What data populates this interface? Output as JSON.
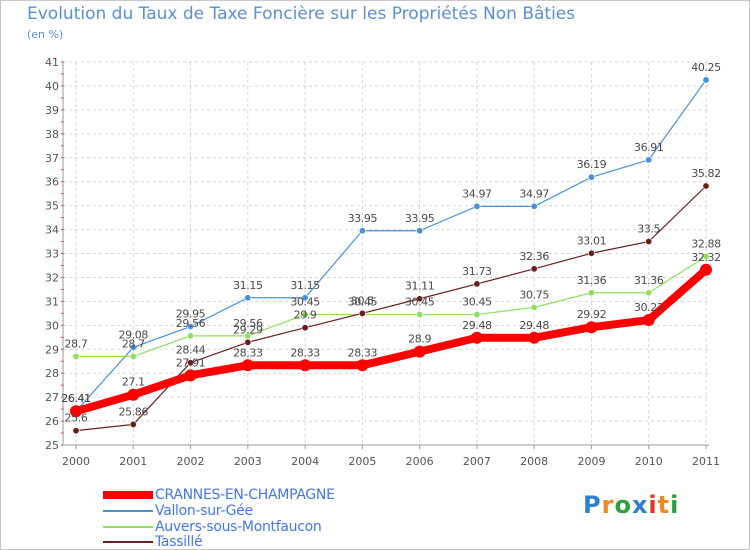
{
  "chart_data": {
    "type": "line",
    "title": "Evolution du Taux de Taxe Foncière sur les Propriétés Non Bâties",
    "ylabel": "(en %)",
    "xlabel": "",
    "categories": [
      "2000",
      "2001",
      "2002",
      "2003",
      "2004",
      "2005",
      "2006",
      "2007",
      "2008",
      "2009",
      "2010",
      "2011"
    ],
    "ylim": [
      25,
      41
    ],
    "yticks": [
      "25",
      "26",
      "27",
      "28",
      "29",
      "30",
      "31",
      "32",
      "33",
      "34",
      "35",
      "36",
      "37",
      "38",
      "39",
      "40",
      "41"
    ],
    "grid": true,
    "series": [
      {
        "name": "CRANNES-EN-CHAMPAGNE",
        "color": "#ff0000",
        "values": [
          26.41,
          27.1,
          27.91,
          28.33,
          28.33,
          28.33,
          28.9,
          29.48,
          29.48,
          29.92,
          30.22,
          32.32
        ],
        "labels": [
          "26.41",
          "27.1",
          "27.91",
          "28.33",
          "28.33",
          "28.33",
          "28.9",
          "29.48",
          "29.48",
          "29.92",
          "30.22",
          "32.32"
        ]
      },
      {
        "name": "Vallon-sur-Gée",
        "color": "#4a90d9",
        "values": [
          26.41,
          29.08,
          29.95,
          31.15,
          31.15,
          33.95,
          33.95,
          34.97,
          34.97,
          36.19,
          36.91,
          40.25
        ],
        "labels": [
          "26.41",
          "29.08",
          "29.95",
          "31.15",
          "31.15",
          "33.95",
          "33.95",
          "34.97",
          "34.97",
          "36.19",
          "36.91",
          "40.25"
        ]
      },
      {
        "name": "Auvers-sous-Montfaucon",
        "color": "#90e060",
        "values": [
          28.7,
          28.7,
          29.56,
          29.56,
          30.45,
          30.45,
          30.45,
          30.45,
          30.75,
          31.36,
          31.36,
          32.88
        ],
        "labels": [
          "28.7",
          "28.7",
          "29.56",
          "29.56",
          "30.45",
          "30.45",
          "30.45",
          "30.45",
          "30.75",
          "31.36",
          "31.36",
          "32.88"
        ]
      },
      {
        "name": "Tassillé",
        "color": "#6b1e1e",
        "values": [
          25.6,
          25.86,
          28.44,
          29.29,
          29.9,
          30.5,
          31.11,
          31.73,
          32.36,
          33.01,
          33.5,
          35.82
        ],
        "labels": [
          "25.6",
          "25.86",
          "28.44",
          "29.29",
          "29.9",
          "30.5",
          "31.11",
          "31.73",
          "32.36",
          "33.01",
          "33.5",
          "35.82"
        ]
      }
    ]
  },
  "brand": {
    "text": "Proxiti",
    "letters": [
      "P",
      "r",
      "o",
      "x",
      "i",
      "t",
      "i"
    ],
    "colors": [
      "#2f7fd0",
      "#ef8a1c",
      "#2f9f3f",
      "#2f7fd0",
      "#e2322a",
      "#ef8a1c",
      "#2f9f3f"
    ]
  }
}
